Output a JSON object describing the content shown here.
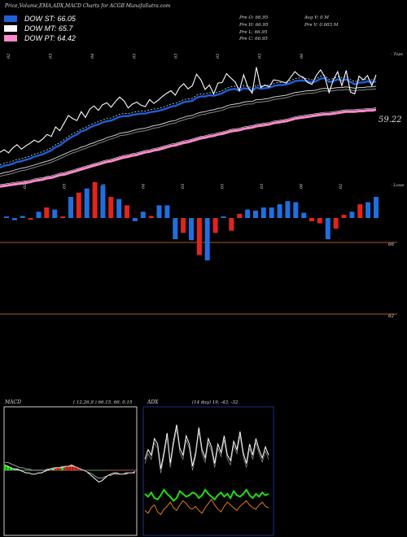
{
  "header": {
    "title": "Price,Volume,EMA,ADX,MACD Charts for ACGB MunafaSutra.com",
    "legend": [
      {
        "label": "DOW ST: 66.05",
        "color": "#1f5fd8"
      },
      {
        "label": "DOW MT: 65.7",
        "color": "#ffffff"
      },
      {
        "label": "DOW PT: 64.42",
        "color": "#ff88cc"
      }
    ],
    "ohlc": {
      "open": "Pre  O: 66.95",
      "high": "Pre  H: 66.95",
      "low": "Pre  L: 66.95",
      "close": "Pre  C: 66.95",
      "avg_volume": "Avg V: 0  M",
      "volume": "Pre  V: 0.003 M"
    }
  },
  "chart_data": [
    {
      "type": "line",
      "x_top_labels": [
        "02",
        "03",
        "04",
        "05",
        "03",
        "05",
        "03",
        "06"
      ],
      "x_bottom_labels": [
        "02",
        "03",
        "05",
        "04",
        "03",
        "05",
        "03",
        "06",
        "02"
      ],
      "axis_top_right": "- Tops",
      "axis_bottom_right": "- Lows",
      "last_price_label": "59.22",
      "close": [
        78,
        82,
        77,
        85,
        90,
        83,
        88,
        92,
        97,
        94,
        99,
        106,
        103,
        118,
        112,
        124,
        136,
        131,
        128,
        142,
        133,
        146,
        151,
        144,
        153,
        156,
        149,
        158,
        165,
        159,
        148,
        154,
        157,
        152,
        150,
        161,
        155,
        160,
        166,
        171,
        175,
        168,
        180,
        186,
        178,
        183,
        201,
        192,
        177,
        184,
        170,
        187,
        188,
        202,
        195,
        189,
        175,
        200,
        181,
        171,
        212,
        180,
        184,
        181,
        192,
        191,
        189,
        187,
        196,
        205,
        199,
        196,
        188,
        185,
        199,
        208,
        197,
        172,
        192,
        205,
        183,
        207,
        173,
        170,
        198,
        192,
        199,
        183,
        200
      ],
      "ema_short": [
        54,
        57,
        58,
        60,
        63,
        64,
        66,
        68,
        71,
        73,
        75,
        78,
        81,
        86,
        89,
        94,
        99,
        103,
        106,
        111,
        113,
        117,
        120,
        122,
        125,
        127,
        128,
        131,
        134,
        135,
        135,
        137,
        138,
        139,
        139,
        141,
        142,
        143,
        145,
        147,
        150,
        151,
        154,
        157,
        158,
        159,
        164,
        166,
        166,
        168,
        167,
        169,
        171,
        175,
        177,
        178,
        175,
        179,
        178,
        175,
        180,
        178,
        179,
        180,
        182,
        184,
        184,
        185,
        187,
        190,
        191,
        191,
        190,
        188,
        190,
        194,
        195,
        189,
        190,
        193,
        191,
        193,
        189,
        185,
        188,
        188,
        190,
        188,
        190
      ],
      "ema_mid": [
        44,
        46,
        47,
        49,
        51,
        53,
        54,
        56,
        58,
        60,
        62,
        64,
        66,
        69,
        72,
        75,
        78,
        81,
        83,
        86,
        88,
        91,
        93,
        96,
        98,
        101,
        103,
        105,
        108,
        109,
        110,
        112,
        114,
        115,
        116,
        118,
        120,
        121,
        123,
        125,
        127,
        128,
        131,
        133,
        135,
        136,
        139,
        141,
        142,
        144,
        145,
        147,
        148,
        151,
        153,
        154,
        155,
        157,
        158,
        158,
        161,
        161,
        162,
        163,
        165,
        166,
        167,
        168,
        170,
        172,
        173,
        174,
        175,
        175,
        176,
        178,
        179,
        178,
        179,
        180,
        180,
        181,
        180,
        179,
        180,
        180,
        181,
        181,
        182
      ],
      "ema_long": [
        24,
        25,
        26,
        27,
        28,
        29,
        30,
        31,
        33,
        34,
        35,
        37,
        38,
        40,
        42,
        43,
        45,
        47,
        49,
        51,
        53,
        55,
        57,
        59,
        61,
        63,
        64,
        66,
        68,
        70,
        71,
        73,
        74,
        76,
        78,
        79,
        81,
        82,
        84,
        86,
        88,
        89,
        91,
        93,
        94,
        96,
        98,
        100,
        101,
        103,
        104,
        106,
        107,
        109,
        111,
        112,
        113,
        115,
        116,
        117,
        119,
        120,
        121,
        122,
        124,
        125,
        126,
        127,
        129,
        131,
        132,
        133,
        134,
        135,
        136,
        137,
        138,
        138,
        139,
        140,
        141,
        142,
        142,
        142,
        143,
        143,
        144,
        144,
        145
      ]
    },
    {
      "type": "bar",
      "name": "volume",
      "level_labels": [
        "66",
        "62"
      ],
      "bars": [
        {
          "v": 0.1,
          "c": "blue"
        },
        {
          "v": -0.2,
          "c": "blue"
        },
        {
          "v": 0.2,
          "c": "blue"
        },
        {
          "v": -0.1,
          "c": "red"
        },
        {
          "v": 0.6,
          "c": "blue"
        },
        {
          "v": 1.0,
          "c": "red"
        },
        {
          "v": 0.8,
          "c": "blue"
        },
        {
          "v": 0.1,
          "c": "red"
        },
        {
          "v": 2.0,
          "c": "blue"
        },
        {
          "v": 2.4,
          "c": "red"
        },
        {
          "v": 2.8,
          "c": "blue"
        },
        {
          "v": 3.4,
          "c": "red"
        },
        {
          "v": 3.1,
          "c": "blue"
        },
        {
          "v": 2.0,
          "c": "red"
        },
        {
          "v": 1.8,
          "c": "blue"
        },
        {
          "v": 1.2,
          "c": "red"
        },
        {
          "v": -0.3,
          "c": "blue"
        },
        {
          "v": 0.6,
          "c": "blue"
        },
        {
          "v": 0.2,
          "c": "red"
        },
        {
          "v": 1.2,
          "c": "blue"
        },
        {
          "v": 1.2,
          "c": "blue"
        },
        {
          "v": -2.0,
          "c": "blue"
        },
        {
          "v": -1.4,
          "c": "red"
        },
        {
          "v": -2.1,
          "c": "blue"
        },
        {
          "v": -3.5,
          "c": "red"
        },
        {
          "v": -4.0,
          "c": "blue"
        },
        {
          "v": -1.4,
          "c": "red"
        },
        {
          "v": 0.1,
          "c": "blue"
        },
        {
          "v": -1.2,
          "c": "red"
        },
        {
          "v": 0.4,
          "c": "red"
        },
        {
          "v": 0.8,
          "c": "blue"
        },
        {
          "v": 0.7,
          "c": "blue"
        },
        {
          "v": 1.0,
          "c": "blue"
        },
        {
          "v": 1.0,
          "c": "blue"
        },
        {
          "v": 1.3,
          "c": "blue"
        },
        {
          "v": 1.6,
          "c": "blue"
        },
        {
          "v": 1.5,
          "c": "blue"
        },
        {
          "v": 0.5,
          "c": "blue"
        },
        {
          "v": -0.3,
          "c": "red"
        },
        {
          "v": -0.5,
          "c": "red"
        },
        {
          "v": -2.0,
          "c": "blue"
        },
        {
          "v": -1.0,
          "c": "red"
        },
        {
          "v": 0.3,
          "c": "red"
        },
        {
          "v": 0.6,
          "c": "blue"
        },
        {
          "v": 1.3,
          "c": "red"
        },
        {
          "v": 1.5,
          "c": "blue"
        },
        {
          "v": 2.0,
          "c": "blue"
        }
      ]
    },
    {
      "type": "line",
      "name": "MACD",
      "title": "MACD",
      "params": "( 12,26,9 ) 66.15,  66,  0.15",
      "macd": [
        64,
        63,
        62,
        61,
        61,
        60,
        59,
        58,
        58,
        57,
        57,
        58,
        58,
        59,
        60,
        61,
        61,
        62,
        62,
        62,
        63,
        63,
        64,
        63,
        62,
        61,
        60,
        59,
        57,
        55,
        53,
        51,
        52,
        54,
        56,
        57,
        58,
        58,
        57,
        57,
        58,
        58,
        58,
        59
      ],
      "signal": [
        66,
        66,
        65,
        64,
        63,
        62,
        62,
        61,
        61,
        60,
        60,
        60,
        60,
        60,
        61,
        61,
        62,
        62,
        62,
        63,
        63,
        63,
        63,
        63,
        62,
        61,
        60,
        59,
        58,
        57,
        55,
        54,
        54,
        55,
        56,
        56,
        57,
        57,
        57,
        57,
        57,
        58,
        58,
        58
      ],
      "hist": [
        -2,
        -3,
        -3,
        -3,
        -2,
        -2,
        -3,
        -3,
        -3,
        -3,
        -3,
        -2,
        -2,
        -1,
        -1,
        0,
        -1,
        0,
        0,
        -1,
        0,
        0,
        1,
        0,
        0,
        0,
        0,
        0,
        -1,
        -2,
        -2,
        -3,
        -2,
        -1,
        0,
        1,
        1,
        1,
        0,
        0,
        1,
        0,
        0,
        1
      ]
    },
    {
      "type": "line",
      "name": "ADX",
      "title": "ADX",
      "params": "(14  day) 19,  -43,  -32",
      "adx": [
        55,
        62,
        58,
        70,
        66,
        48,
        60,
        74,
        52,
        68,
        80,
        63,
        58,
        72,
        66,
        50,
        60,
        78,
        62,
        56,
        70,
        64,
        52,
        66,
        60,
        72,
        58,
        54,
        68,
        62,
        75,
        60,
        52,
        66,
        58,
        70,
        62,
        56,
        64,
        58
      ],
      "plus_di": [
        30,
        28,
        31,
        27,
        26,
        29,
        33,
        30,
        28,
        25,
        27,
        32,
        30,
        28,
        29,
        31,
        30,
        27,
        29,
        33,
        30,
        28,
        26,
        29,
        31,
        28,
        30,
        27,
        32,
        29,
        28,
        30,
        33,
        29,
        27,
        30,
        28,
        31,
        29,
        30
      ],
      "minus_di": [
        18,
        16,
        20,
        22,
        17,
        15,
        19,
        21,
        24,
        20,
        18,
        22,
        25,
        23,
        20,
        19,
        21,
        18,
        16,
        20,
        23,
        26,
        22,
        19,
        17,
        21,
        24,
        22,
        20,
        18,
        21,
        23,
        25,
        22,
        20,
        19,
        22,
        24,
        21,
        20
      ]
    }
  ]
}
